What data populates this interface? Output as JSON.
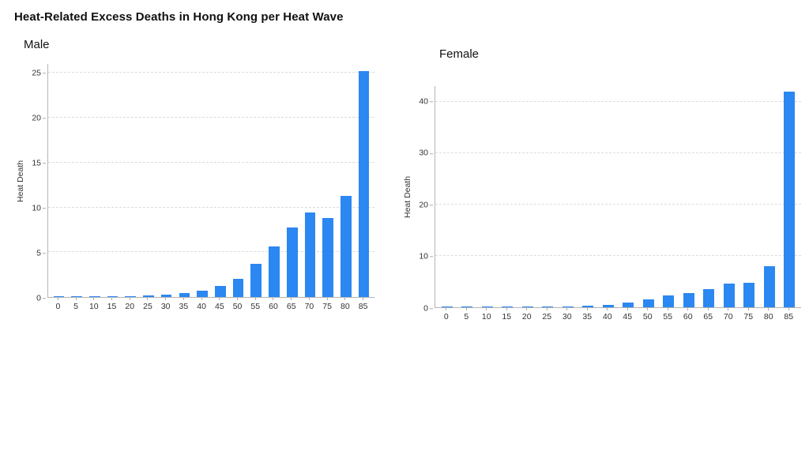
{
  "page": {
    "title": "Heat-Related Excess Deaths in Hong Kong per Heat Wave"
  },
  "colors": {
    "bar": "#2b87f1",
    "gridline": "#dcdcdc",
    "axis": "#b5b5b5"
  },
  "chart_data": [
    {
      "type": "bar",
      "title": "Male",
      "xlabel": "",
      "ylabel": "Heat Death",
      "categories": [
        "0",
        "5",
        "10",
        "15",
        "20",
        "25",
        "30",
        "35",
        "40",
        "45",
        "50",
        "55",
        "60",
        "65",
        "70",
        "75",
        "80",
        "85"
      ],
      "values": [
        0.05,
        0.02,
        0.03,
        0.04,
        0.1,
        0.15,
        0.3,
        0.45,
        0.7,
        1.2,
        2.0,
        3.7,
        5.6,
        7.8,
        9.4,
        8.8,
        11.3,
        25.2
      ],
      "ylim": [
        0,
        26
      ],
      "yticks": [
        0,
        5,
        10,
        15,
        20,
        25
      ],
      "grid": true,
      "legend": "none",
      "bar_color": "#2b87f1"
    },
    {
      "type": "bar",
      "title": "Female",
      "xlabel": "",
      "ylabel": "Heat Death",
      "categories": [
        "0",
        "5",
        "10",
        "15",
        "20",
        "25",
        "30",
        "35",
        "40",
        "45",
        "50",
        "55",
        "60",
        "65",
        "70",
        "75",
        "80",
        "85"
      ],
      "values": [
        0.05,
        0.1,
        0.02,
        0.02,
        0.03,
        0.05,
        0.12,
        0.25,
        0.5,
        0.9,
        1.6,
        2.3,
        2.8,
        3.5,
        4.6,
        4.8,
        8.0,
        42.0
      ],
      "ylim": [
        0,
        43
      ],
      "yticks": [
        0,
        10,
        20,
        30,
        40
      ],
      "grid": true,
      "legend": "none",
      "bar_color": "#2b87f1"
    }
  ]
}
